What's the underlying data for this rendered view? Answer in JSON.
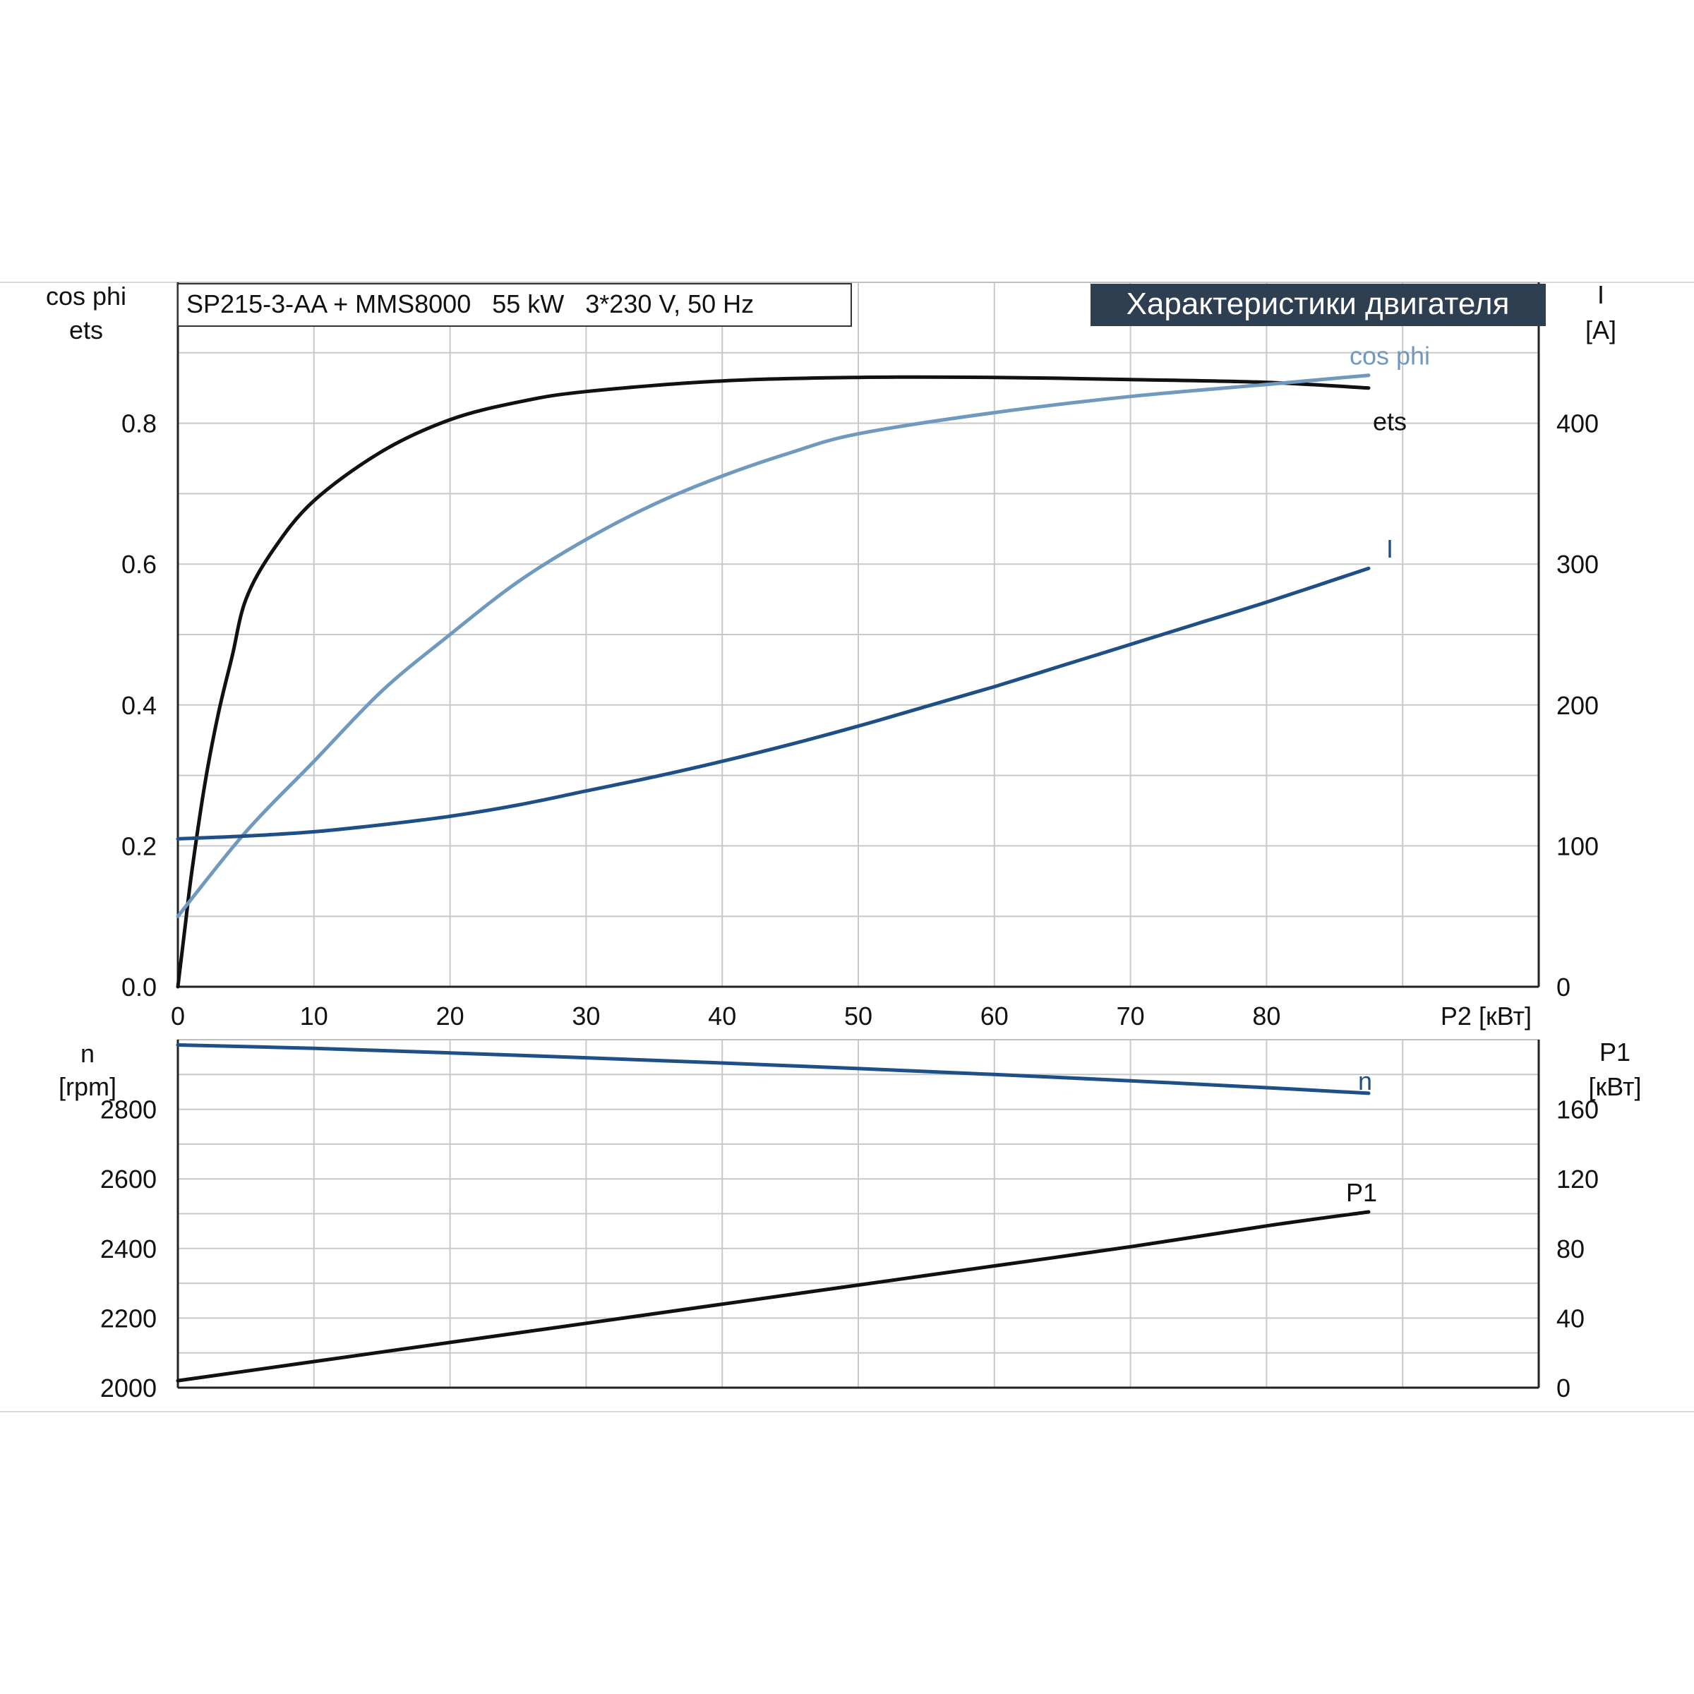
{
  "info_box": "SP215-3-AA + MMS8000   55 kW   3*230 V, 50 Hz",
  "title_badge": "Характеристики двигателя",
  "colors": {
    "ets": "#111111",
    "cos_phi": "#7099bf",
    "I": "#1f4f87",
    "n": "#1f4f87",
    "P1": "#111111",
    "badge_bg": "#2f3f52",
    "grid": "#c8c8c8"
  },
  "chart_data": [
    {
      "type": "line",
      "xlabel": "P2 [кВт]",
      "xlim": [
        0,
        100
      ],
      "x_ticks": [
        "0",
        "10",
        "20",
        "30",
        "40",
        "50",
        "60",
        "70",
        "80"
      ],
      "ylabel_left": [
        "cos phi",
        "ets"
      ],
      "ylim_left": [
        0,
        1.0
      ],
      "y_ticks_left": [
        "0.0",
        "0.2",
        "0.4",
        "0.6",
        "0.8"
      ],
      "ylabel_right": [
        "I",
        "[A]"
      ],
      "ylim_right": [
        0,
        500
      ],
      "y_ticks_right": [
        "0",
        "100",
        "200",
        "300",
        "400"
      ],
      "grid": true,
      "series": [
        {
          "name": "ets",
          "axis": "left",
          "x": [
            0,
            0.5,
            1,
            2,
            3,
            4,
            5,
            7,
            10,
            15,
            20,
            25,
            30,
            40,
            50,
            60,
            70,
            80,
            87.5
          ],
          "y": [
            0,
            0.08,
            0.16,
            0.29,
            0.39,
            0.47,
            0.55,
            0.62,
            0.69,
            0.76,
            0.805,
            0.83,
            0.845,
            0.86,
            0.865,
            0.865,
            0.862,
            0.858,
            0.85
          ]
        },
        {
          "name": "cos phi",
          "axis": "left",
          "x": [
            0,
            5,
            10,
            15,
            20,
            25,
            30,
            35,
            40,
            45,
            50,
            60,
            70,
            80,
            87.5
          ],
          "y": [
            0.1,
            0.22,
            0.32,
            0.42,
            0.5,
            0.575,
            0.635,
            0.685,
            0.725,
            0.758,
            0.785,
            0.815,
            0.838,
            0.855,
            0.868
          ]
        },
        {
          "name": "I",
          "axis": "right",
          "x": [
            0,
            5,
            10,
            15,
            20,
            25,
            30,
            35,
            40,
            45,
            50,
            55,
            60,
            65,
            70,
            75,
            80,
            87.5
          ],
          "y": [
            105,
            107,
            110,
            115,
            121,
            129,
            139,
            149,
            160,
            172,
            185,
            199,
            213,
            228,
            243,
            258,
            273,
            297
          ]
        }
      ]
    },
    {
      "type": "line",
      "xlim": [
        0,
        100
      ],
      "ylabel_left": [
        "n",
        "[rpm]"
      ],
      "ylim_left": [
        2000,
        3000
      ],
      "y_ticks_left": [
        "2000",
        "2200",
        "2400",
        "2600",
        "2800"
      ],
      "ylabel_right": [
        "P1",
        "[кВт]"
      ],
      "ylim_right": [
        0,
        200
      ],
      "y_ticks_right": [
        "0",
        "40",
        "80",
        "120",
        "160"
      ],
      "grid": true,
      "series": [
        {
          "name": "n",
          "axis": "left",
          "x": [
            0,
            10,
            20,
            30,
            40,
            50,
            60,
            70,
            80,
            87.5
          ],
          "y": [
            2985,
            2975,
            2962,
            2948,
            2933,
            2917,
            2900,
            2882,
            2862,
            2846
          ]
        },
        {
          "name": "P1",
          "axis": "right",
          "x": [
            0,
            10,
            20,
            30,
            40,
            50,
            60,
            70,
            80,
            87.5
          ],
          "y": [
            4,
            15,
            26,
            37,
            48,
            59,
            70,
            81,
            93,
            101
          ]
        }
      ]
    }
  ]
}
